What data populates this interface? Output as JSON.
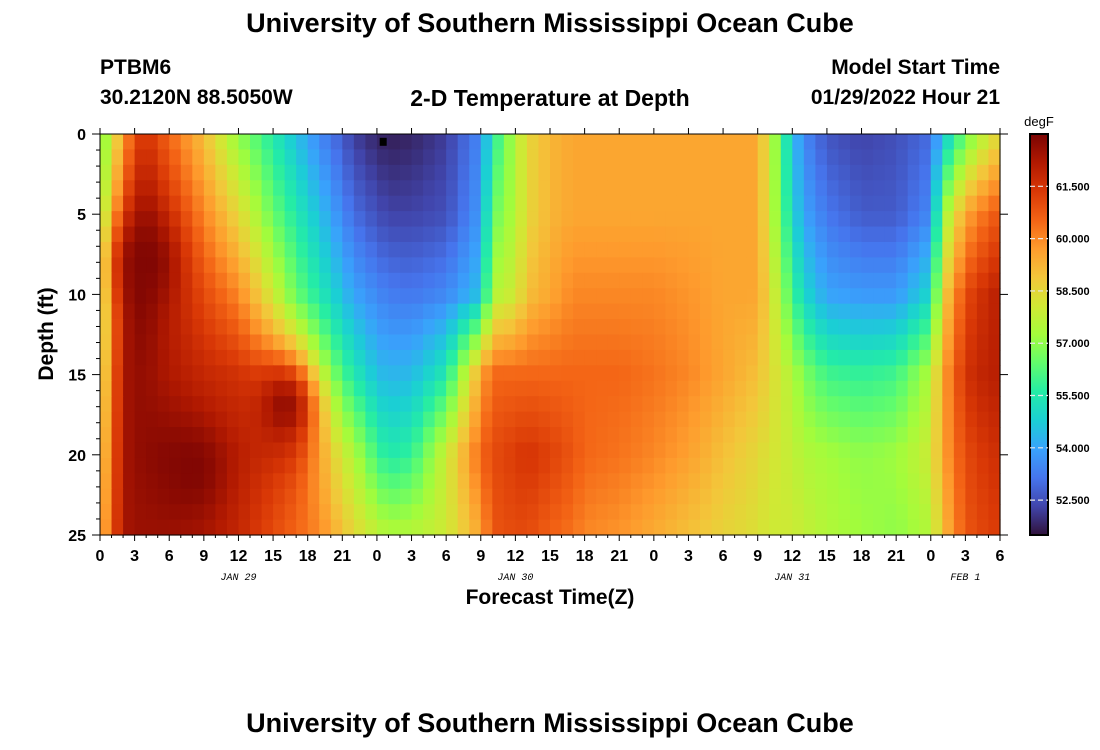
{
  "header": {
    "title": "University of Southern Mississippi Ocean Cube",
    "station_id": "PTBM6",
    "coordinates": "30.2120N  88.5050W",
    "plot_title": "2-D Temperature at Depth",
    "model_start_label": "Model Start Time",
    "model_start_value": "01/29/2022 Hour 21"
  },
  "footer": {
    "title": "University of Southern Mississippi Ocean Cube"
  },
  "colors": {
    "colormap": [
      "#30123b",
      "#4145ab",
      "#4675ed",
      "#39a2fc",
      "#1bcfd4",
      "#24eca6",
      "#61fc6c",
      "#a4fc3b",
      "#d1e834",
      "#f3c63a",
      "#fe9b2d",
      "#f36315",
      "#d93806",
      "#b11901",
      "#7a0403"
    ],
    "marker": "#000000"
  },
  "chart_data": {
    "type": "heatmap",
    "title": "2-D Temperature at Depth",
    "xlabel": "Forecast Time(Z)",
    "ylabel": "Depth (ft)",
    "x_tick_labels": [
      "0",
      "3",
      "6",
      "9",
      "12",
      "15",
      "18",
      "21",
      "0",
      "3",
      "6",
      "9",
      "12",
      "15",
      "18",
      "21",
      "0",
      "3",
      "6",
      "9",
      "12",
      "15",
      "18",
      "21",
      "0",
      "3",
      "6"
    ],
    "x_range_hours": [
      0,
      78
    ],
    "date_labels": [
      {
        "label": "JAN 29",
        "hour": 12
      },
      {
        "label": "JAN 30",
        "hour": 36
      },
      {
        "label": "JAN 31",
        "hour": 60
      },
      {
        "label": "FEB 1",
        "hour": 75
      }
    ],
    "y_tick_labels": [
      "0",
      "5",
      "10",
      "15",
      "20",
      "25"
    ],
    "y_range_ft": [
      0,
      25
    ],
    "y_inverted": true,
    "colorbar": {
      "unit": "degF",
      "range": [
        51.5,
        63.0
      ],
      "tick_values": [
        52.5,
        54.0,
        55.5,
        57.0,
        58.5,
        60.0,
        61.5
      ],
      "tick_labels": [
        "52.500",
        "54.000",
        "55.500",
        "57.000",
        "58.500",
        "60.000",
        "61.500"
      ]
    },
    "temperature_field": {
      "depths_ft": [
        0,
        5,
        10,
        15,
        20,
        25
      ],
      "hours": [
        0,
        2,
        3,
        4,
        6,
        9,
        12,
        15,
        17,
        19,
        21,
        22,
        24,
        25,
        27,
        30,
        33,
        34,
        36,
        37,
        39,
        41,
        42,
        45,
        48,
        51,
        54,
        57,
        58,
        60,
        61,
        63,
        66,
        69,
        72,
        73,
        75,
        77,
        78
      ],
      "values_degF": [
        [
          56.5,
          59.5,
          61.0,
          61.5,
          60.5,
          59.0,
          57.0,
          55.5,
          54.5,
          53.5,
          52.7,
          52.2,
          51.8,
          51.7,
          51.8,
          52.2,
          53.5,
          55.5,
          57.5,
          58.5,
          59.2,
          59.5,
          59.5,
          59.5,
          59.5,
          59.5,
          59.5,
          59.5,
          58.0,
          54.5,
          53.5,
          52.6,
          52.3,
          52.5,
          53.0,
          54.5,
          56.5,
          58.0,
          58.5
        ],
        [
          57.0,
          61.0,
          62.0,
          62.5,
          61.5,
          60.0,
          58.5,
          56.5,
          55.5,
          54.5,
          53.5,
          53.0,
          52.5,
          52.3,
          52.3,
          52.5,
          53.8,
          56.5,
          57.5,
          58.5,
          59.2,
          59.5,
          59.5,
          59.5,
          59.5,
          59.5,
          59.5,
          59.5,
          58.0,
          55.0,
          54.0,
          53.2,
          52.7,
          52.7,
          53.5,
          57.0,
          59.5,
          60.5,
          60.8
        ],
        [
          57.5,
          62.0,
          62.8,
          62.8,
          62.0,
          61.0,
          60.0,
          58.0,
          56.5,
          55.5,
          54.5,
          54.0,
          53.5,
          53.3,
          53.2,
          53.5,
          54.5,
          57.5,
          58.0,
          59.0,
          59.5,
          60.0,
          60.0,
          60.0,
          60.0,
          59.8,
          59.5,
          59.5,
          58.5,
          56.0,
          55.0,
          54.0,
          53.8,
          53.8,
          55.0,
          58.5,
          61.0,
          61.8,
          62.0
        ],
        [
          58.0,
          62.3,
          62.6,
          62.6,
          62.2,
          61.8,
          61.5,
          60.5,
          59.5,
          57.5,
          56.0,
          55.5,
          54.5,
          54.3,
          54.4,
          55.5,
          59.5,
          60.5,
          60.5,
          60.5,
          60.5,
          60.5,
          60.5,
          60.5,
          60.3,
          60.0,
          59.5,
          59.0,
          58.5,
          57.5,
          56.8,
          56.0,
          55.8,
          56.0,
          57.5,
          59.5,
          61.5,
          62.0,
          62.0
        ],
        [
          58.5,
          62.3,
          62.6,
          62.7,
          62.8,
          62.5,
          62.0,
          61.5,
          61.0,
          59.5,
          58.0,
          57.5,
          56.0,
          55.5,
          55.8,
          58.0,
          60.5,
          61.0,
          61.3,
          61.5,
          61.2,
          60.8,
          60.5,
          60.3,
          60.0,
          59.6,
          59.0,
          58.5,
          58.2,
          57.8,
          57.5,
          57.3,
          57.0,
          57.2,
          58.0,
          59.5,
          61.0,
          61.5,
          61.6
        ],
        [
          59.0,
          62.3,
          62.5,
          62.5,
          62.5,
          62.3,
          61.8,
          61.0,
          60.5,
          60.0,
          59.0,
          58.5,
          57.8,
          57.5,
          57.6,
          58.0,
          59.5,
          60.8,
          61.0,
          61.0,
          60.6,
          60.3,
          60.0,
          59.8,
          59.4,
          59.0,
          58.6,
          58.3,
          58.0,
          58.0,
          57.8,
          57.5,
          57.2,
          57.0,
          57.5,
          59.0,
          60.8,
          61.2,
          61.3
        ]
      ]
    },
    "local_extremes": [
      {
        "hour": 4,
        "depth_ft": 8,
        "value_degF": 62.9
      },
      {
        "hour": 16,
        "depth_ft": 17,
        "value_degF": 62.6
      },
      {
        "hour": 8,
        "depth_ft": 21,
        "value_degF": 62.9
      }
    ],
    "marker": {
      "hour": 24.5,
      "depth_ft": 0.3
    }
  }
}
